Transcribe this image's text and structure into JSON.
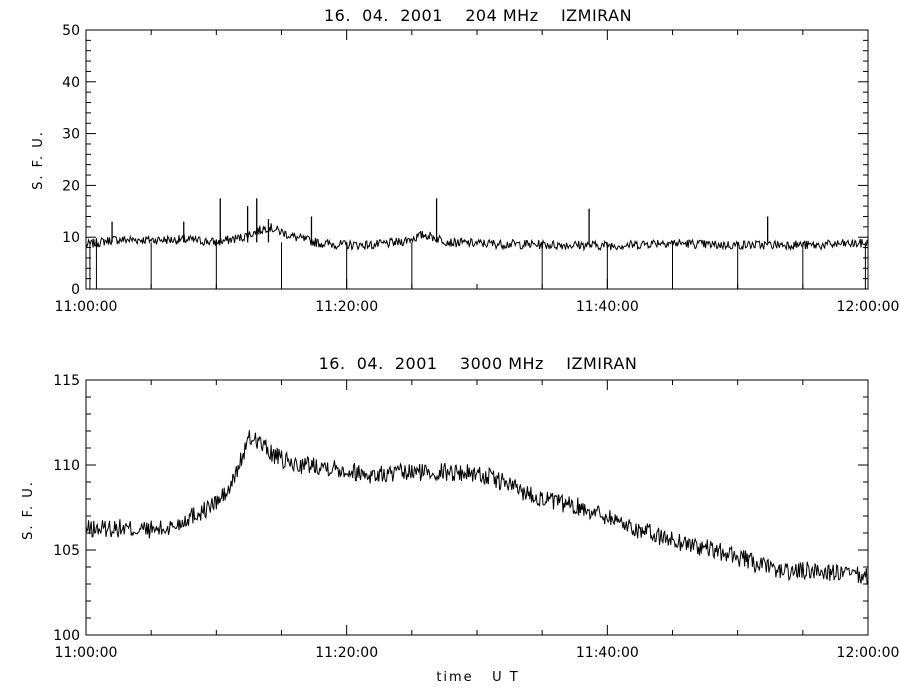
{
  "chart_data": [
    {
      "type": "line",
      "title": "16.  04.  2001    204 MHz    IZMIRAN",
      "xlabel": "",
      "ylabel": "S. F. U.",
      "xlim": [
        "11:00:00",
        "12:00:00"
      ],
      "ylim": [
        0,
        50
      ],
      "x_tick_labels": [
        "11:00:00",
        "11:20:00",
        "11:40:00",
        "12:00:00"
      ],
      "y_tick_labels": [
        "0",
        "10",
        "20",
        "30",
        "40",
        "50"
      ],
      "grid": false,
      "series": [
        {
          "values_description_free": true,
          "time_min": [
            0,
            2,
            4,
            6,
            8,
            10,
            12,
            14,
            16,
            18,
            20,
            22,
            24,
            26,
            28,
            30,
            32,
            34,
            36,
            38,
            40,
            42,
            44,
            46,
            48,
            50,
            52,
            54,
            56,
            58,
            60
          ],
          "values": [
            8.5,
            9.5,
            9.5,
            9.5,
            9.5,
            9.0,
            10.0,
            12.0,
            10.0,
            8.8,
            8.5,
            8.5,
            9.0,
            10.5,
            9.0,
            8.8,
            8.7,
            8.6,
            8.5,
            8.5,
            8.4,
            8.5,
            9.0,
            8.8,
            8.5,
            8.5,
            8.5,
            8.6,
            8.4,
            8.7,
            8.8
          ]
        }
      ],
      "spikes_up": [
        {
          "t_min": 2.0,
          "value": 13.0
        },
        {
          "t_min": 7.5,
          "value": 13.0
        },
        {
          "t_min": 10.3,
          "value": 17.5
        },
        {
          "t_min": 12.4,
          "value": 16.0
        },
        {
          "t_min": 13.1,
          "value": 17.5
        },
        {
          "t_min": 14.0,
          "value": 13.5
        },
        {
          "t_min": 17.3,
          "value": 14.0
        },
        {
          "t_min": 26.9,
          "value": 17.5
        },
        {
          "t_min": 38.6,
          "value": 15.5
        },
        {
          "t_min": 52.3,
          "value": 14.0
        }
      ],
      "spikes_down_to": 0,
      "spikes_down": [
        0.0,
        0.3,
        0.8,
        5.0,
        10.0,
        15.0,
        20.0,
        25.0,
        35.0,
        40.0,
        45.0,
        50.0,
        55.0,
        59.8
      ]
    },
    {
      "type": "line",
      "title": "16.  04.  2001    3000 MHz    IZMIRAN",
      "xlabel": "time   U T",
      "ylabel": "S. F. U.",
      "xlim": [
        "11:00:00",
        "12:00:00"
      ],
      "ylim": [
        100,
        115
      ],
      "x_tick_labels": [
        "11:00:00",
        "11:20:00",
        "11:40:00",
        "12:00:00"
      ],
      "y_tick_labels": [
        "100",
        "105",
        "110",
        "115"
      ],
      "grid": false,
      "series": [
        {
          "time_min": [
            0,
            2,
            4,
            6,
            7,
            8,
            9,
            10,
            11,
            12,
            12.5,
            13,
            14,
            15,
            16,
            18,
            20,
            22,
            24,
            26,
            28,
            30,
            32,
            34,
            36,
            38,
            40,
            42,
            44,
            46,
            48,
            50,
            52,
            54,
            56,
            58,
            60
          ],
          "values": [
            106.2,
            106.3,
            106.2,
            106.2,
            106.5,
            107.0,
            107.3,
            107.8,
            108.5,
            110.5,
            111.5,
            111.6,
            110.8,
            110.3,
            110.0,
            110.0,
            109.7,
            109.4,
            109.5,
            109.6,
            109.6,
            109.5,
            109.0,
            108.3,
            107.8,
            107.5,
            107.0,
            106.3,
            105.8,
            105.4,
            105.0,
            104.6,
            104.0,
            103.7,
            103.8,
            103.6,
            103.4
          ]
        }
      ]
    }
  ]
}
